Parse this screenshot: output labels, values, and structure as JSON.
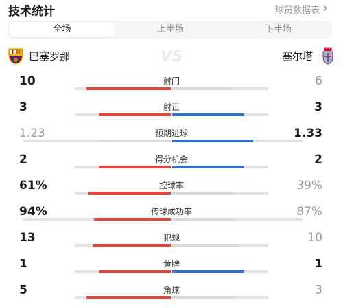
{
  "header": {
    "title": "技术统计",
    "more_label": "球员数据表"
  },
  "tabs": [
    {
      "label": "全场",
      "active": true
    },
    {
      "label": "上半场",
      "active": false
    },
    {
      "label": "下半场",
      "active": false
    }
  ],
  "teams": {
    "home": {
      "name": "巴塞罗那",
      "bar_color": "#e8443a"
    },
    "away": {
      "name": "塞尔塔",
      "bar_color": "#2f6fd8"
    },
    "vs_text": "VS"
  },
  "stats": [
    {
      "label": "射门",
      "home": "10",
      "away": "6",
      "home_value": 10,
      "away_value": 6,
      "leader": "home"
    },
    {
      "label": "射正",
      "home": "3",
      "away": "3",
      "home_value": 3,
      "away_value": 3,
      "leader": "both"
    },
    {
      "label": "预期进球",
      "home": "1.23",
      "away": "1.33",
      "home_value": 1.23,
      "away_value": 1.33,
      "leader": "away"
    },
    {
      "label": "得分机会",
      "home": "2",
      "away": "2",
      "home_value": 2,
      "away_value": 2,
      "leader": "both"
    },
    {
      "label": "控球率",
      "home": "61%",
      "away": "39%",
      "home_value": 61,
      "away_value": 39,
      "leader": "home"
    },
    {
      "label": "传球成功率",
      "home": "94%",
      "away": "87%",
      "home_value": 94,
      "away_value": 87,
      "leader": "home"
    },
    {
      "label": "犯规",
      "home": "13",
      "away": "10",
      "home_value": 13,
      "away_value": 10,
      "leader": "home"
    },
    {
      "label": "黄牌",
      "home": "1",
      "away": "1",
      "home_value": 1,
      "away_value": 1,
      "leader": "both"
    },
    {
      "label": "角球",
      "home": "5",
      "away": "3",
      "home_value": 5,
      "away_value": 3,
      "leader": "home"
    }
  ]
}
